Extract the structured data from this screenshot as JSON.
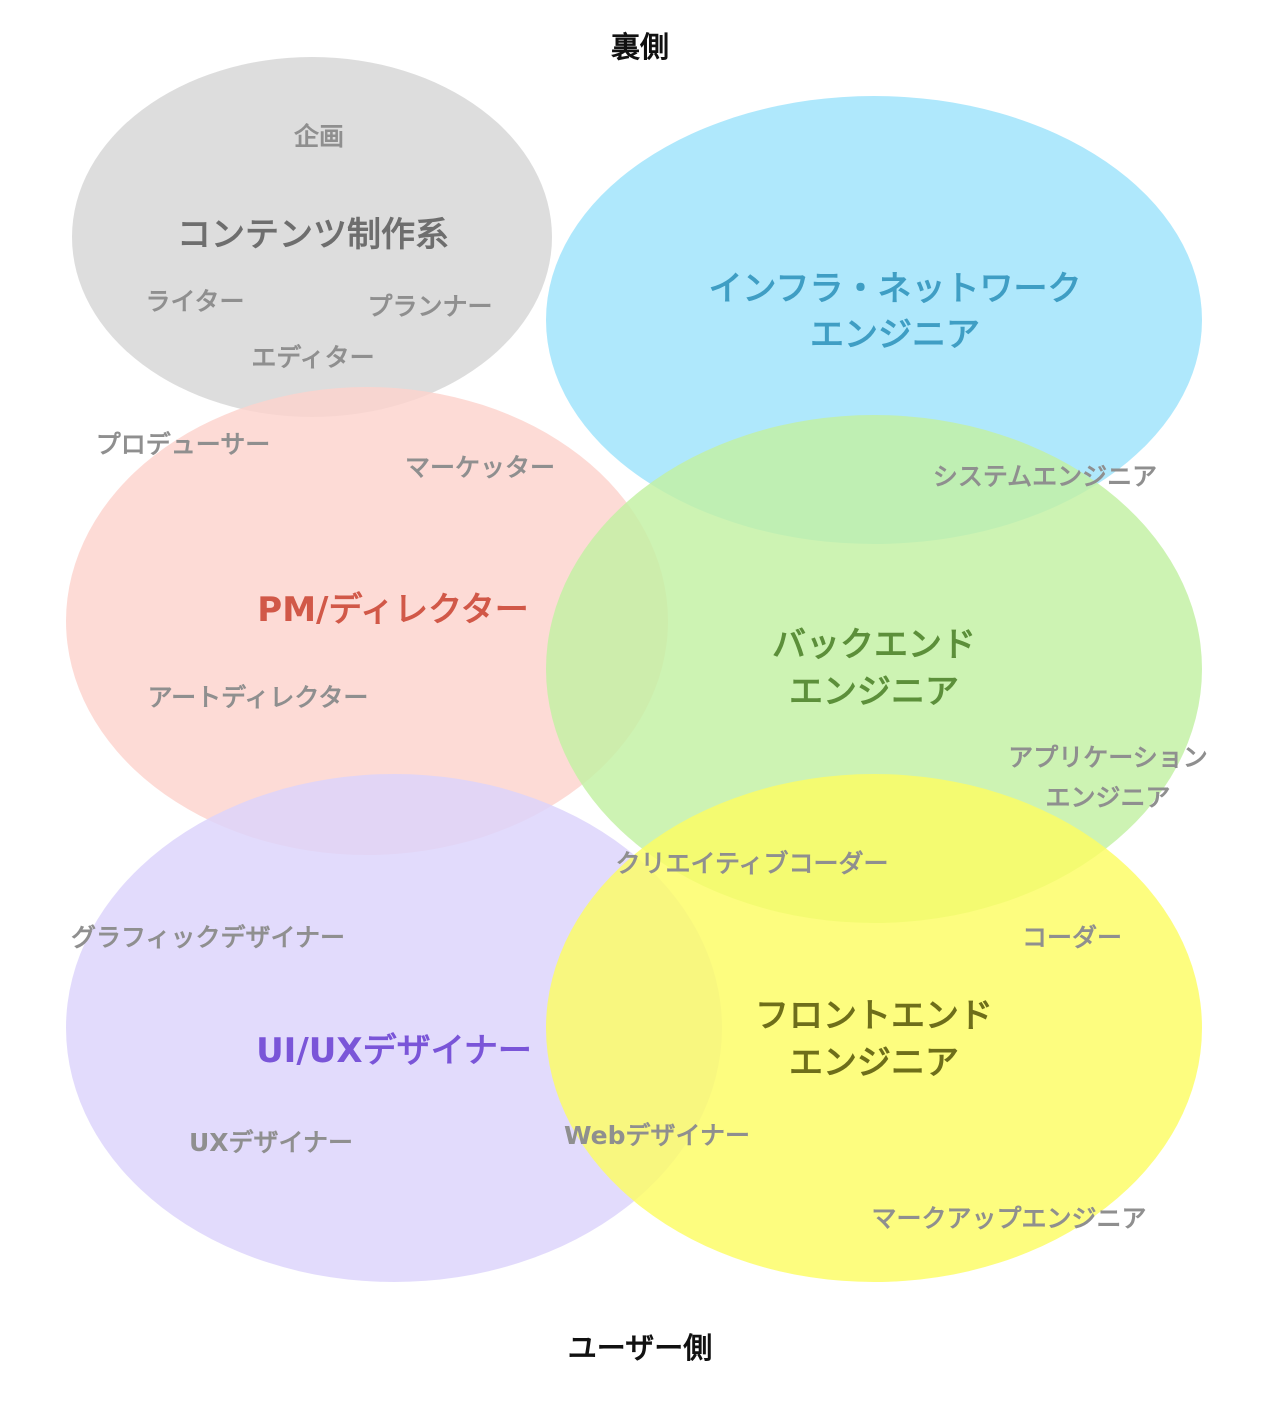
{
  "axis": {
    "top": "裏側",
    "bottom": "ユーザー側"
  },
  "groups": {
    "content": {
      "title": "コンテンツ制作系",
      "color": "#d6d6d6",
      "title_color": "#6e6e6e",
      "roles": [
        "企画",
        "ライター",
        "プランナー",
        "エディター"
      ]
    },
    "infra": {
      "title_line1": "インフラ・ネットワーク",
      "title_line2": "エンジニア",
      "color": "#9de3fb",
      "title_color": "#3f9ec4"
    },
    "pm": {
      "title": "PM/ディレクター",
      "color": "#fdd3cd",
      "title_color": "#d15848",
      "roles": [
        "プロデューサー",
        "マーケッター",
        "アートディレクター"
      ]
    },
    "backend": {
      "title_line1": "バックエンド",
      "title_line2": "エンジニア",
      "color": "#c2f0a2",
      "title_color": "#5c8f3a",
      "roles": [
        "システムエンジニア",
        "アプリケーション",
        "エンジニア"
      ]
    },
    "uiux": {
      "title": "UI/UXデザイナー",
      "color": "#dcd3fb",
      "title_color": "#7a55d8",
      "roles": [
        "グラフィックデザイナー",
        "UXデザイナー"
      ]
    },
    "frontend": {
      "title_line1": "フロントエンド",
      "title_line2": "エンジニア",
      "color": "#fdfd63",
      "title_color": "#6e6e1a",
      "roles": [
        "コーダー",
        "マークアップエンジニア"
      ]
    }
  },
  "overlaps": {
    "backend_frontend": "クリエイティブコーダー",
    "uiux_frontend": "Webデザイナー"
  }
}
